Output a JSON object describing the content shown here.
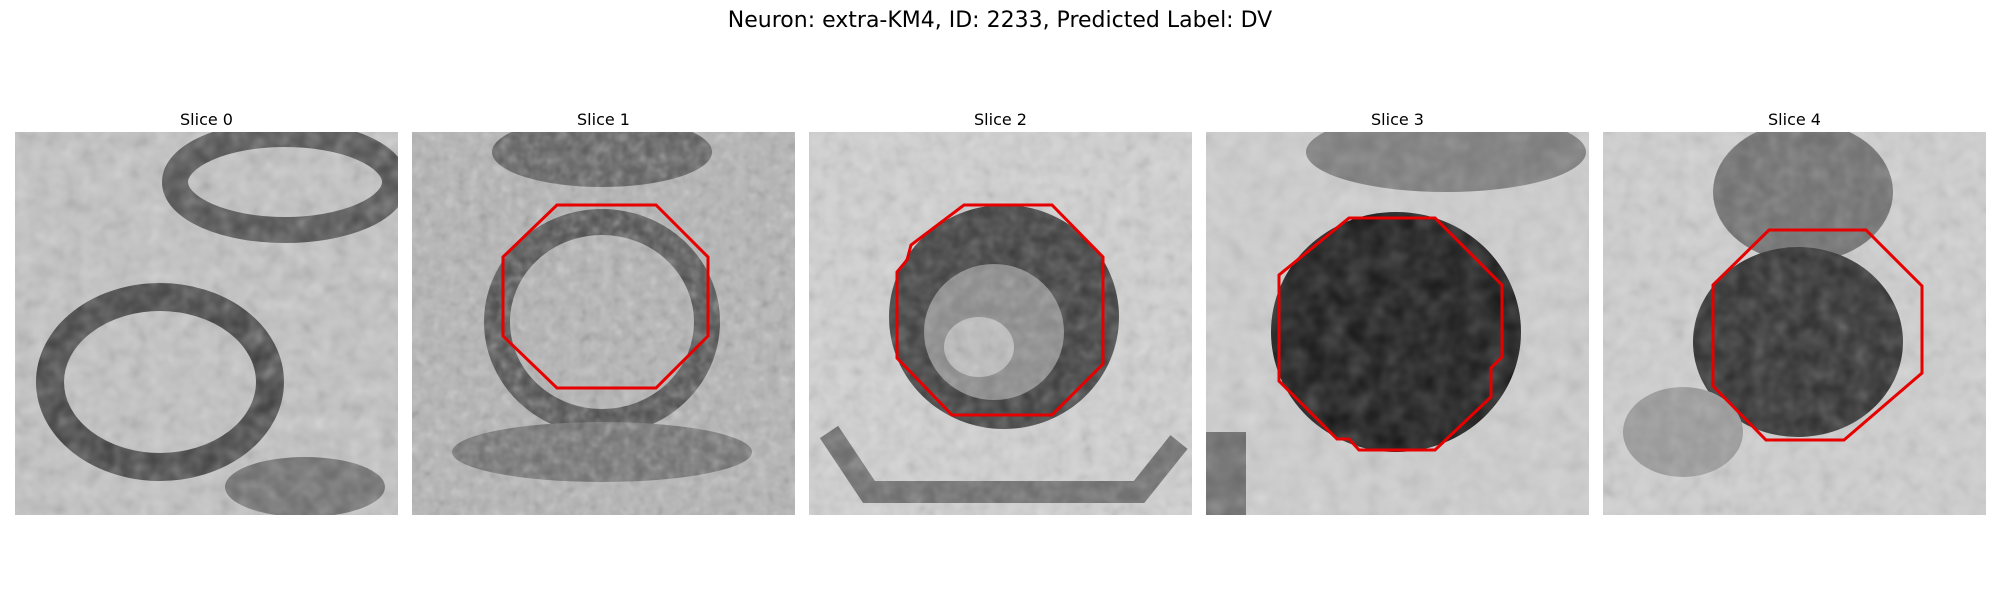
{
  "figure": {
    "title": "Neuron: extra-KM4, ID: 2233, Predicted Label: DV"
  },
  "slices": [
    {
      "title": "Slice 0",
      "has_contour": false
    },
    {
      "title": "Slice 1",
      "has_contour": true
    },
    {
      "title": "Slice 2",
      "has_contour": true
    },
    {
      "title": "Slice 3",
      "has_contour": true
    },
    {
      "title": "Slice 4",
      "has_contour": true
    }
  ],
  "colors": {
    "contour": "#e60000",
    "background": "#ffffff"
  }
}
